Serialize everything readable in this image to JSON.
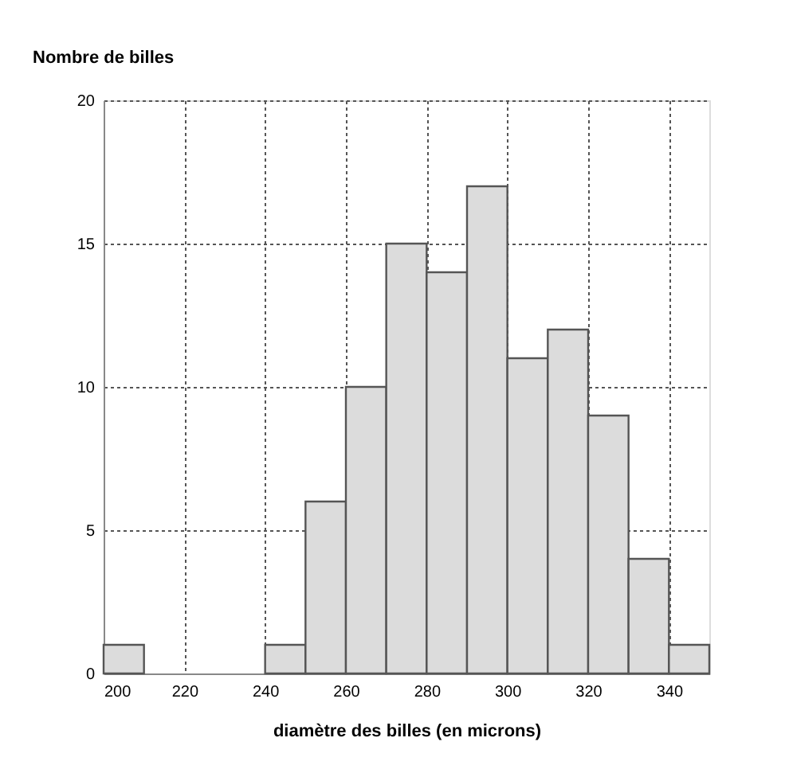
{
  "chart_data": {
    "type": "histogram",
    "xlabel": "diamètre des billes (en microns)",
    "ylabel": "Nombre de billes",
    "bins": [
      200,
      210,
      220,
      230,
      240,
      250,
      260,
      270,
      280,
      290,
      300,
      310,
      320,
      330,
      340,
      350
    ],
    "values": [
      1,
      0,
      0,
      0,
      1,
      6,
      10,
      15,
      14,
      17,
      11,
      12,
      9,
      4,
      1
    ],
    "color": "#dcdcdc",
    "xlim": [
      200,
      350
    ],
    "xticks": [
      200,
      220,
      240,
      260,
      280,
      300,
      320,
      340
    ],
    "ylim": [
      0,
      20
    ],
    "yticks": [
      0,
      5,
      10,
      15,
      20
    ],
    "grid": true
  }
}
